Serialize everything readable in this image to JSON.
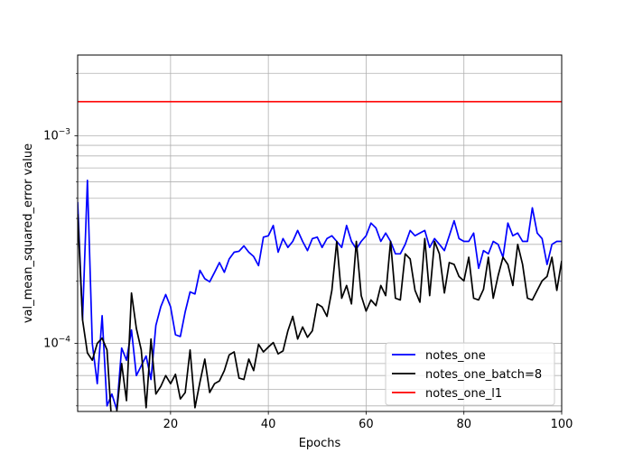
{
  "chart_data": {
    "type": "line",
    "xlabel": "Epochs",
    "ylabel": "val_mean_squared_error value",
    "xlim": [
      1,
      100
    ],
    "ylim": [
      4.7e-05,
      0.00245
    ],
    "yscale": "log",
    "grid": true,
    "legend_placement": "lower right",
    "x_ticks": [
      {
        "value": 20,
        "label": "20"
      },
      {
        "value": 40,
        "label": "40"
      },
      {
        "value": 60,
        "label": "60"
      },
      {
        "value": 80,
        "label": "80"
      },
      {
        "value": 100,
        "label": "100"
      }
    ],
    "y_major_ticks": [
      {
        "value": 0.0001,
        "base": "10",
        "exp": "−4"
      },
      {
        "value": 0.001,
        "base": "10",
        "exp": "−3"
      }
    ],
    "y_minor_ticks": [
      5e-05,
      6e-05,
      7e-05,
      8e-05,
      9e-05,
      0.0002,
      0.0003,
      0.0004,
      0.0005,
      0.0006,
      0.0007,
      0.0008,
      0.0009,
      0.002
    ],
    "series": [
      {
        "name": "notes_one",
        "color": "#0000ff",
        "x": [
          1,
          2,
          3,
          4,
          5,
          6,
          7,
          8,
          9,
          10,
          11,
          12,
          13,
          14,
          15,
          16,
          17,
          18,
          19,
          20,
          21,
          22,
          23,
          24,
          25,
          26,
          27,
          28,
          29,
          30,
          31,
          32,
          33,
          34,
          35,
          36,
          37,
          38,
          39,
          40,
          41,
          42,
          43,
          44,
          45,
          46,
          47,
          48,
          49,
          50,
          51,
          52,
          53,
          54,
          55,
          56,
          57,
          58,
          59,
          60,
          61,
          62,
          63,
          64,
          65,
          66,
          67,
          68,
          69,
          70,
          71,
          72,
          73,
          74,
          75,
          76,
          77,
          78,
          79,
          80,
          81,
          82,
          83,
          84,
          85,
          86,
          87,
          88,
          89,
          90,
          91,
          92,
          93,
          94,
          95,
          96,
          97,
          98,
          99,
          100
        ],
        "y": [
          0.00048,
          0.00013,
          0.00061,
          0.0001,
          6.4e-05,
          0.000136,
          5e-05,
          5.7e-05,
          4.8e-05,
          9.5e-05,
          8.3e-05,
          0.000116,
          7e-05,
          7.8e-05,
          8.7e-05,
          6.7e-05,
          0.000122,
          0.00015,
          0.000172,
          0.00015,
          0.00011,
          0.000108,
          0.000142,
          0.000177,
          0.000173,
          0.000225,
          0.000205,
          0.000198,
          0.00022,
          0.000245,
          0.00022,
          0.000255,
          0.000275,
          0.000278,
          0.000295,
          0.000275,
          0.000262,
          0.000237,
          0.000325,
          0.00033,
          0.00037,
          0.000275,
          0.00032,
          0.00029,
          0.00031,
          0.00035,
          0.00031,
          0.00028,
          0.00032,
          0.000325,
          0.00029,
          0.00032,
          0.00033,
          0.00031,
          0.00029,
          0.00037,
          0.00031,
          0.000285,
          0.00031,
          0.00033,
          0.00038,
          0.00036,
          0.00031,
          0.00034,
          0.00031,
          0.00027,
          0.00027,
          0.0003,
          0.00035,
          0.00033,
          0.00034,
          0.00035,
          0.00029,
          0.00032,
          0.0003,
          0.00028,
          0.00033,
          0.00039,
          0.00032,
          0.00031,
          0.00031,
          0.00034,
          0.00023,
          0.00028,
          0.00027,
          0.00031,
          0.0003,
          0.00026,
          0.00038,
          0.00033,
          0.00034,
          0.00031,
          0.00031,
          0.00045,
          0.00034,
          0.00032,
          0.00024,
          0.0003,
          0.00031,
          0.00031
        ]
      },
      {
        "name": "notes_one_batch=8",
        "color": "#000000",
        "x": [
          1,
          2,
          3,
          4,
          5,
          6,
          7,
          8,
          9,
          10,
          11,
          12,
          13,
          14,
          15,
          16,
          17,
          18,
          19,
          20,
          21,
          22,
          23,
          24,
          25,
          26,
          27,
          28,
          29,
          30,
          31,
          32,
          33,
          34,
          35,
          36,
          37,
          38,
          39,
          40,
          41,
          42,
          43,
          44,
          45,
          46,
          47,
          48,
          49,
          50,
          51,
          52,
          53,
          54,
          55,
          56,
          57,
          58,
          59,
          60,
          61,
          62,
          63,
          64,
          65,
          66,
          67,
          68,
          69,
          70,
          71,
          72,
          73,
          74,
          75,
          76,
          77,
          78,
          79,
          80,
          81,
          82,
          83,
          84,
          85,
          86,
          87,
          88,
          89,
          90,
          91,
          92,
          93,
          94,
          95,
          96,
          97,
          98,
          99,
          100
        ],
        "y": [
          0.00042,
          0.00013,
          9e-05,
          8.3e-05,
          0.0001,
          0.000106,
          9.3e-05,
          4e-05,
          4.7e-05,
          8e-05,
          5.3e-05,
          0.000175,
          0.000118,
          9.3e-05,
          4.9e-05,
          0.000105,
          5.7e-05,
          6.2e-05,
          7e-05,
          6.4e-05,
          7.1e-05,
          5.4e-05,
          5.8e-05,
          9.3e-05,
          4.9e-05,
          6.5e-05,
          8.4e-05,
          5.8e-05,
          6.4e-05,
          6.6e-05,
          7.4e-05,
          8.8e-05,
          9.1e-05,
          6.8e-05,
          6.7e-05,
          8.4e-05,
          7.4e-05,
          9.9e-05,
          9.1e-05,
          9.6e-05,
          0.000101,
          8.9e-05,
          9.2e-05,
          0.000115,
          0.000135,
          0.000105,
          0.00012,
          0.000107,
          0.000115,
          0.000155,
          0.00015,
          0.000135,
          0.00018,
          0.00031,
          0.000165,
          0.00019,
          0.000155,
          0.00031,
          0.00017,
          0.000143,
          0.000162,
          0.000152,
          0.00019,
          0.00017,
          0.00031,
          0.000165,
          0.000162,
          0.00027,
          0.000255,
          0.00018,
          0.000158,
          0.00032,
          0.00017,
          0.00031,
          0.00027,
          0.000175,
          0.000245,
          0.00024,
          0.00021,
          0.0002,
          0.00026,
          0.000165,
          0.000162,
          0.000182,
          0.00026,
          0.000165,
          0.000212,
          0.00026,
          0.00024,
          0.00019,
          0.0003,
          0.00024,
          0.000165,
          0.000162,
          0.00018,
          0.0002,
          0.00021,
          0.00026,
          0.00018,
          0.00025
        ]
      },
      {
        "name": "notes_one_l1",
        "color": "#ff0000",
        "x": [
          1,
          100
        ],
        "y": [
          0.00146,
          0.00146
        ]
      }
    ]
  }
}
